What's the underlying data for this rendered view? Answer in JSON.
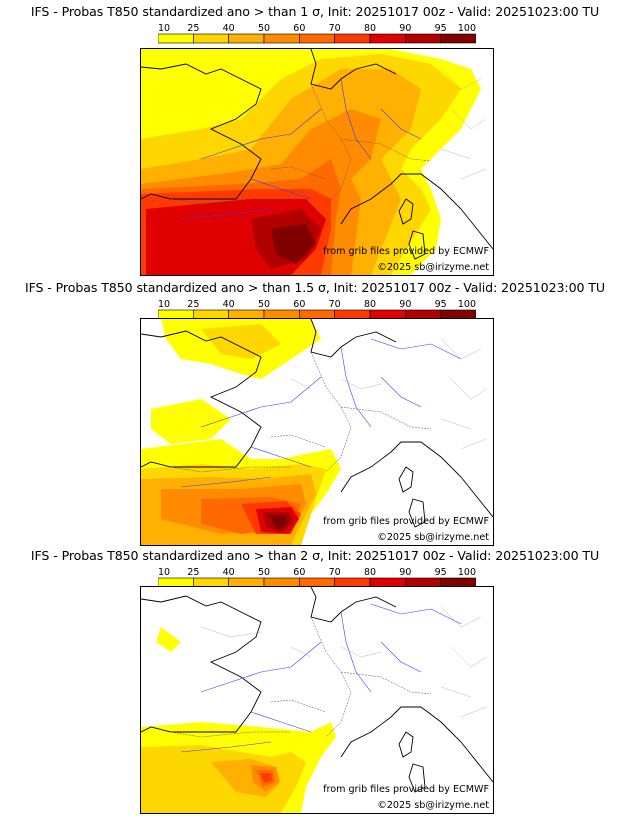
{
  "legend": {
    "levels": [
      "10",
      "25",
      "40",
      "50",
      "60",
      "70",
      "80",
      "90",
      "95",
      "100"
    ],
    "colors": [
      "#ffff00",
      "#ffd700",
      "#ffb000",
      "#ff8c00",
      "#ff6a00",
      "#ff3a00",
      "#e00000",
      "#b00000",
      "#800000"
    ]
  },
  "panels": [
    {
      "title": "IFS - Probas T850  standardized ano > than 1 σ, Init: 20251017 00z - Valid: 20251023:00 TU",
      "credit": "from grib files provided by ECMWF",
      "copyright": "©2025 sb@irizyme.net",
      "threshold": "1 σ"
    },
    {
      "title": "IFS - Probas T850  standardized ano > than 1.5 σ, Init: 20251017 00z - Valid: 20251023:00 TU",
      "credit": "from grib files provided by ECMWF",
      "copyright": "©2025 sb@irizyme.net",
      "threshold": "1.5 σ"
    },
    {
      "title": "IFS - Probas T850  standardized ano > than 2 σ, Init: 20251017 00z - Valid: 20251023:00 TU",
      "credit": "from grib files provided by ECMWF",
      "copyright": "©2025 sb@irizyme.net",
      "threshold": "2 σ"
    }
  ]
}
